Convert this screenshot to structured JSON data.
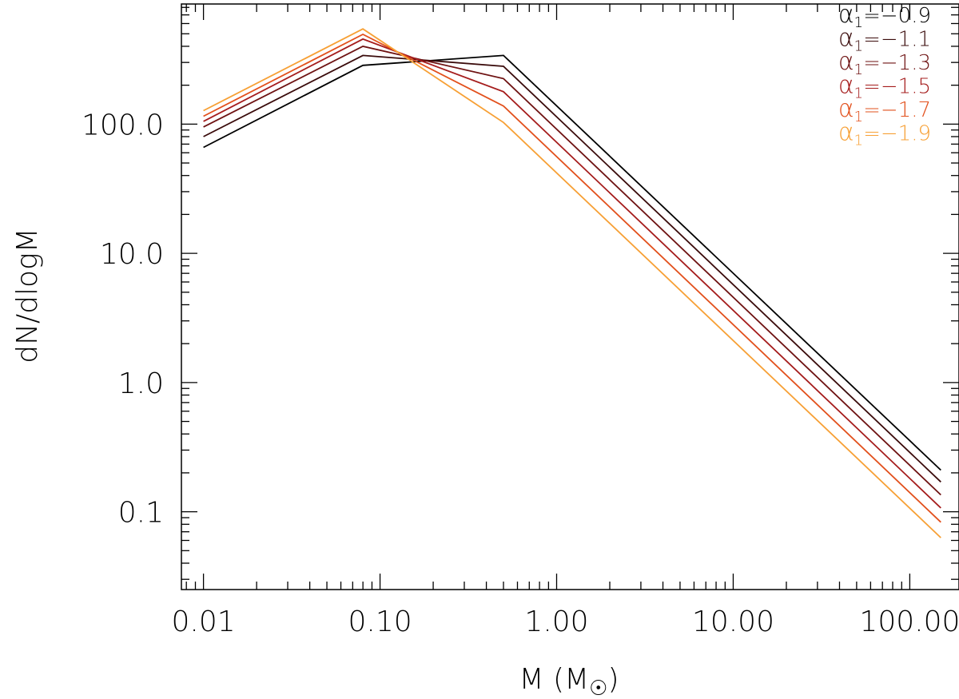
{
  "chart_data": {
    "type": "line",
    "title": "",
    "xlabel": "M  (M",
    "xlabel_symbol": "☉",
    "xlabel_close": ")",
    "ylabel": "dN/dlogM",
    "xscale": "log",
    "yscale": "log",
    "xlim": [
      0.0075,
      190
    ],
    "ylim": [
      0.025,
      850
    ],
    "xticks": [
      {
        "value": 0.01,
        "label": "0.01"
      },
      {
        "value": 0.1,
        "label": "0.10"
      },
      {
        "value": 1,
        "label": "1.00"
      },
      {
        "value": 10,
        "label": "10.00"
      },
      {
        "value": 100,
        "label": "100.00"
      }
    ],
    "yticks": [
      {
        "value": 0.1,
        "label": "0.1"
      },
      {
        "value": 1,
        "label": "1.0"
      },
      {
        "value": 10,
        "label": "10.0"
      },
      {
        "value": 100,
        "label": "100.0"
      }
    ],
    "grid": false,
    "legend_position": "top-right",
    "legend_symbol": "α",
    "legend_subscript": "1",
    "x": [
      0.01,
      0.08,
      0.5,
      150
    ],
    "series": [
      {
        "name": "=−0.9",
        "color": "#000000",
        "values": [
          66,
          285,
          340,
          0.21
        ]
      },
      {
        "name": "=−1.1",
        "color": "#3a0b0b",
        "values": [
          80,
          340,
          280,
          0.17
        ]
      },
      {
        "name": "=−1.3",
        "color": "#6e1212",
        "values": [
          95,
          400,
          225,
          0.135
        ]
      },
      {
        "name": "=−1.5",
        "color": "#a51c1c",
        "values": [
          105,
          455,
          178,
          0.107
        ]
      },
      {
        "name": "=−1.7",
        "color": "#e2501c",
        "values": [
          115,
          495,
          138,
          0.083
        ]
      },
      {
        "name": "=−1.9",
        "color": "#f7a035",
        "values": [
          127,
          545,
          103,
          0.063
        ]
      }
    ]
  }
}
